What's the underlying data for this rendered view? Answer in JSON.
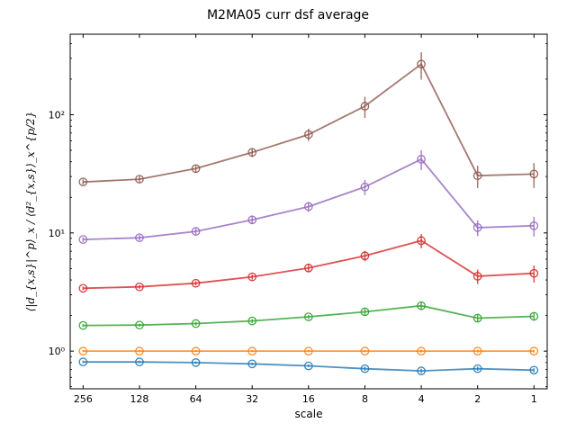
{
  "chart_data": {
    "type": "line",
    "title": "M2MA05 curr dsf average",
    "xlabel": "scale",
    "ylabel": "⟨|d_{x,s}|^p⟩_x / ⟨d²_{x,s}⟩_x^{p/2}",
    "x_scale": "log2-reversed",
    "y_scale": "log",
    "xlim": [
      300,
      0.85
    ],
    "ylim": [
      0.48,
      480
    ],
    "x": [
      256,
      128,
      64,
      32,
      16,
      8,
      4,
      2,
      1
    ],
    "x_tick_labels": [
      "256",
      "128",
      "64",
      "32",
      "16",
      "8",
      "4",
      "2",
      "1"
    ],
    "y_ticks": [
      {
        "value": 1,
        "label": "10⁰"
      },
      {
        "value": 10,
        "label": "10¹"
      },
      {
        "value": 100,
        "label": "10²"
      }
    ],
    "series": [
      {
        "color": "#1f77b4",
        "values": [
          0.81,
          0.81,
          0.8,
          0.78,
          0.75,
          0.71,
          0.68,
          0.71,
          0.69
        ],
        "errors": [
          0.02,
          0.02,
          0.02,
          0.02,
          0.02,
          0.03,
          0.03,
          0.03,
          0.03
        ]
      },
      {
        "color": "#ff7f0e",
        "values": [
          1.0,
          1.0,
          1.0,
          1.0,
          1.0,
          1.0,
          1.0,
          1.0,
          1.0
        ],
        "errors": [
          0.02,
          0.02,
          0.02,
          0.02,
          0.02,
          0.02,
          0.03,
          0.03,
          0.03
        ]
      },
      {
        "color": "#2ca02c",
        "values": [
          1.65,
          1.66,
          1.71,
          1.8,
          1.95,
          2.15,
          2.42,
          1.9,
          1.97
        ],
        "errors": [
          0.05,
          0.05,
          0.06,
          0.07,
          0.08,
          0.14,
          0.2,
          0.14,
          0.15
        ]
      },
      {
        "color": "#d62728",
        "values": [
          3.4,
          3.5,
          3.75,
          4.25,
          5.05,
          6.4,
          8.6,
          4.3,
          4.55
        ],
        "errors": [
          0.12,
          0.13,
          0.16,
          0.22,
          0.35,
          0.65,
          1.2,
          0.6,
          0.75
        ]
      },
      {
        "color": "#9467bd",
        "values": [
          8.8,
          9.1,
          10.3,
          12.9,
          16.7,
          24.5,
          42,
          11.1,
          11.5
        ],
        "errors": [
          0.4,
          0.5,
          0.6,
          0.9,
          1.6,
          3.6,
          8,
          1.7,
          2.2
        ]
      },
      {
        "color": "#8c564b",
        "values": [
          27,
          28.5,
          35,
          48,
          68,
          118,
          268,
          30.5,
          31.5
        ],
        "errors": [
          1.4,
          1.7,
          2.3,
          4.2,
          8,
          24,
          70,
          6.5,
          7.5
        ]
      }
    ]
  }
}
